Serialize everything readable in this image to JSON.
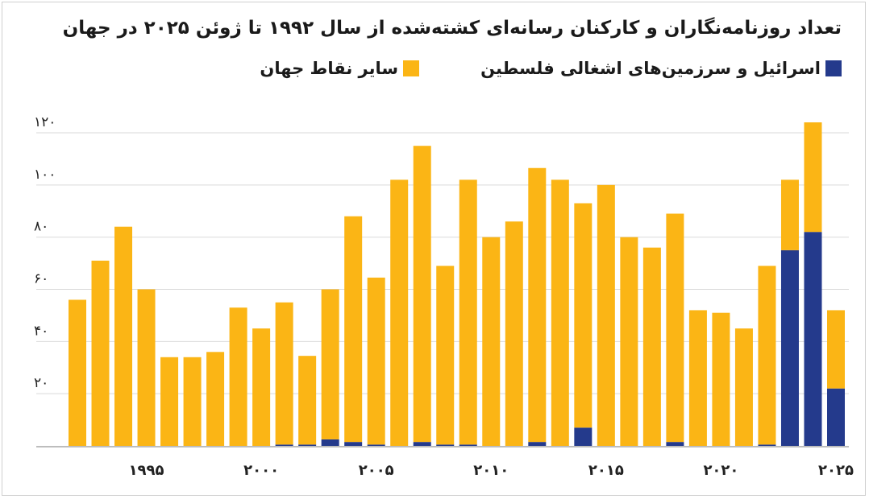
{
  "colors": {
    "israel": "#243a8c",
    "other": "#fbb515",
    "grid": "#d9d9d9",
    "axis": "#bdbdbd"
  },
  "chart_data": {
    "type": "bar",
    "stacked": true,
    "title": "تعداد روزنامه‌نگاران و کارکنان رسانه‌ای کشته‌شده از سال ۱۹۹۲ تا ژوئن ۲۰۲۵ در جهان",
    "legend": "top",
    "grid": true,
    "ylim": [
      0,
      120
    ],
    "yticks": [
      {
        "value": 20,
        "label": "۲۰"
      },
      {
        "value": 40,
        "label": "۴۰"
      },
      {
        "value": 60,
        "label": "۶۰"
      },
      {
        "value": 80,
        "label": "۸۰"
      },
      {
        "value": 100,
        "label": "۱۰۰"
      },
      {
        "value": 120,
        "label": "۱۲۰"
      }
    ],
    "xticks": [
      {
        "year": 1995,
        "label": "۱۹۹۵"
      },
      {
        "year": 2000,
        "label": "۲۰۰۰"
      },
      {
        "year": 2005,
        "label": "۲۰۰۵"
      },
      {
        "year": 2010,
        "label": "۲۰۱۰"
      },
      {
        "year": 2015,
        "label": "۲۰۱۵"
      },
      {
        "year": 2020,
        "label": "۲۰۲۰"
      },
      {
        "year": 2025,
        "label": "۲۰۲۵"
      }
    ],
    "categories": [
      1992,
      1993,
      1994,
      1995,
      1996,
      1997,
      1998,
      1999,
      2000,
      2001,
      2002,
      2003,
      2004,
      2005,
      2006,
      2007,
      2008,
      2009,
      2010,
      2011,
      2012,
      2013,
      2014,
      2015,
      2016,
      2017,
      2018,
      2019,
      2020,
      2021,
      2022,
      2023,
      2024,
      2025
    ],
    "series": [
      {
        "name": "اسرائیل و سرزمین‌های اشغالی فلسطین",
        "key": "israel",
        "values": [
          0,
          0,
          0,
          0,
          0,
          0,
          0,
          0,
          0,
          0.5,
          0.5,
          2.5,
          1.5,
          0.5,
          0,
          1.5,
          0.5,
          0.5,
          0,
          0,
          1.5,
          0,
          7,
          0,
          0,
          0,
          1.5,
          0,
          0,
          0,
          0.5,
          75,
          82,
          22
        ]
      },
      {
        "name": "سایر نقاط جهان",
        "key": "other",
        "values": [
          56,
          71,
          84,
          60,
          34,
          34,
          36,
          53,
          45,
          54.5,
          34,
          57.5,
          86.5,
          64,
          102,
          113.5,
          68.5,
          101.5,
          80,
          86,
          105,
          102,
          86,
          100,
          80,
          76,
          87.5,
          52,
          51,
          45,
          68.5,
          27,
          42,
          30
        ]
      }
    ]
  }
}
